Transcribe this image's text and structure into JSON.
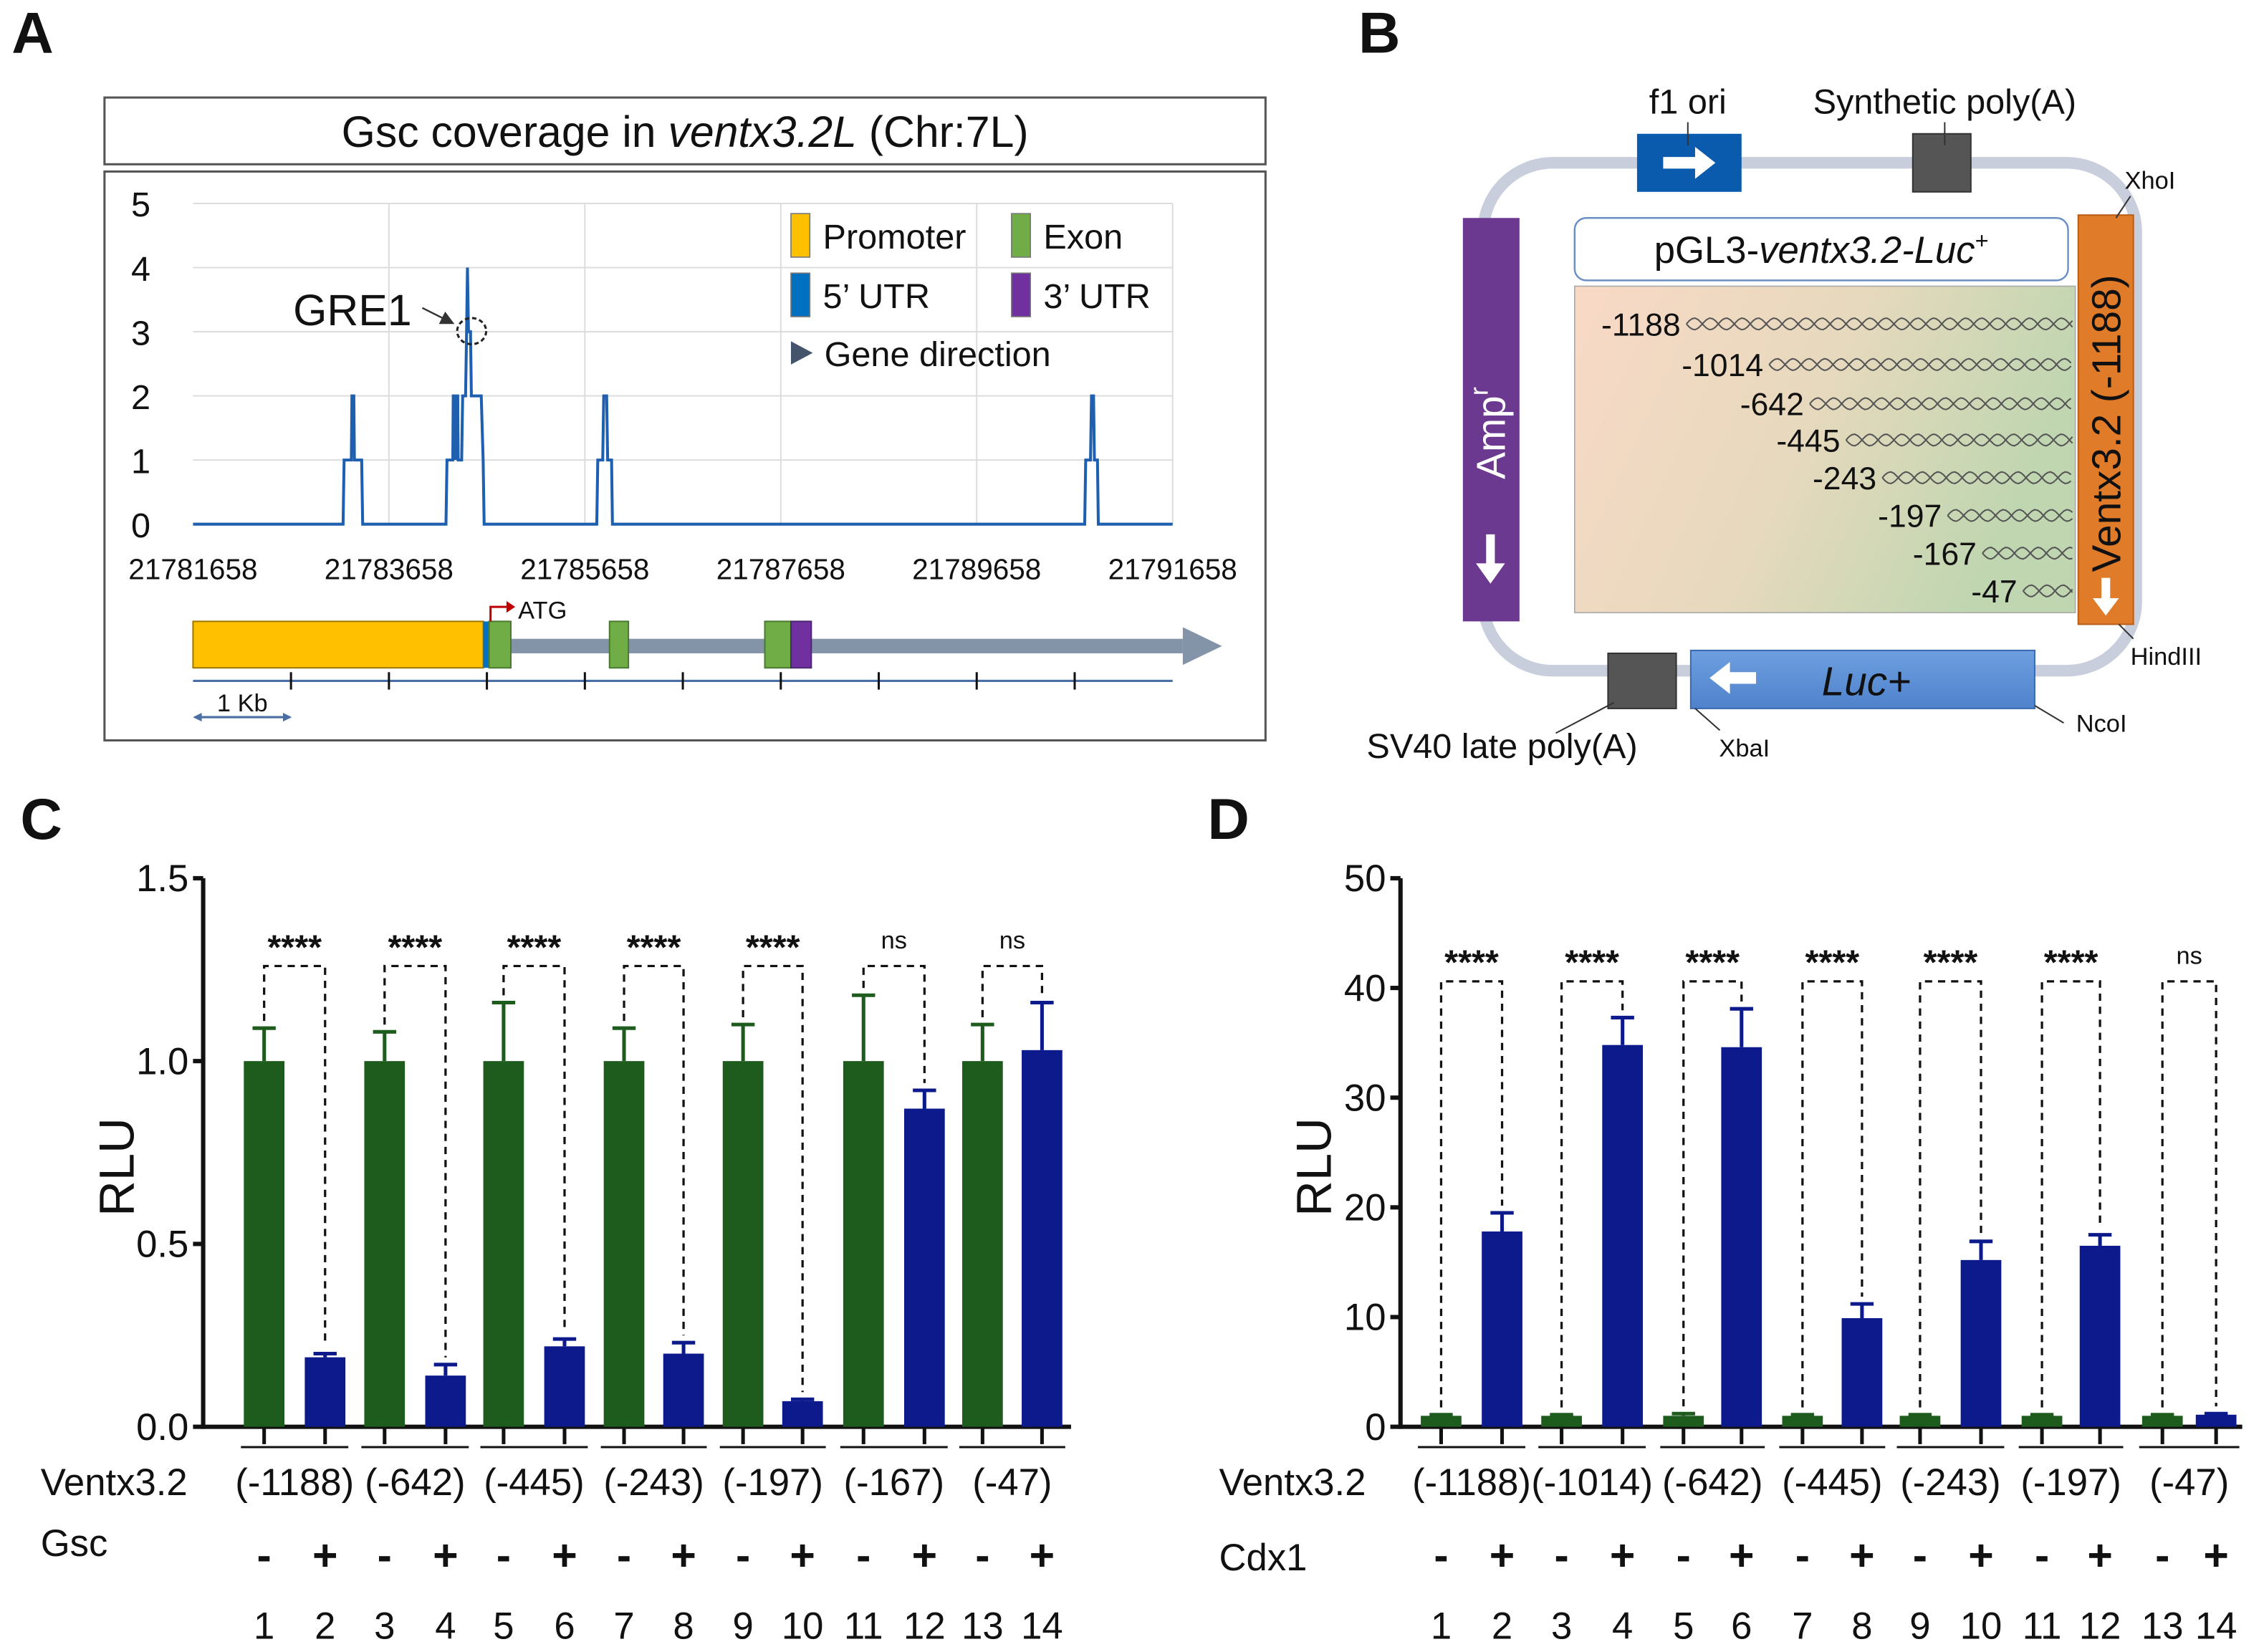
{
  "panel_labels": {
    "a": "A",
    "b": "B",
    "c": "C",
    "d": "D"
  },
  "panel_a": {
    "title_pre": "Gsc coverage in ",
    "title_italic": "ventx3.2L",
    "title_post": " (Chr:7L)",
    "annotation": "GRE1",
    "legend": [
      {
        "label": "Promoter",
        "color": "#FFC000"
      },
      {
        "label": "Exon",
        "color": "#70AD47"
      },
      {
        "label": "5’ UTR",
        "color": "#0070C0"
      },
      {
        "label": "3’ UTR",
        "color": "#7030A0"
      },
      {
        "label": "Gene direction",
        "color": "#44546A"
      }
    ],
    "atg_label": "ATG",
    "scale_label": "1 Kb"
  },
  "chart_data": [
    {
      "panel": "A",
      "type": "line",
      "title": "Gsc coverage in ventx3.2L (Chr:7L)",
      "xlabel": "",
      "ylabel": "",
      "xlim": [
        21781658,
        21791658
      ],
      "ylim": [
        0,
        5
      ],
      "x_ticks": [
        "21781658",
        "21783658",
        "21785658",
        "21787658",
        "21789658",
        "21791658"
      ],
      "y_ticks": [
        "0",
        "1",
        "2",
        "3",
        "4",
        "5"
      ],
      "grid": true,
      "legend_placement": "top-right",
      "color": "#1F5FAF",
      "series": [
        {
          "points": [
            [
              21781658,
              0
            ],
            [
              21783190,
              0
            ],
            [
              21783200,
              1
            ],
            [
              21783275,
              1
            ],
            [
              21783280,
              2
            ],
            [
              21783300,
              2
            ],
            [
              21783305,
              1
            ],
            [
              21783380,
              1
            ],
            [
              21783390,
              0
            ],
            [
              21784240,
              0
            ],
            [
              21784250,
              1
            ],
            [
              21784310,
              1
            ],
            [
              21784315,
              2
            ],
            [
              21784330,
              2
            ],
            [
              21784335,
              1
            ],
            [
              21784345,
              2
            ],
            [
              21784360,
              2
            ],
            [
              21784365,
              1
            ],
            [
              21784400,
              1
            ],
            [
              21784410,
              2
            ],
            [
              21784440,
              2
            ],
            [
              21784450,
              3
            ],
            [
              21784460,
              4
            ],
            [
              21784470,
              3
            ],
            [
              21784490,
              3
            ],
            [
              21784500,
              2
            ],
            [
              21784600,
              2
            ],
            [
              21784620,
              1
            ],
            [
              21784630,
              0
            ],
            [
              21785780,
              0
            ],
            [
              21785790,
              1
            ],
            [
              21785840,
              1
            ],
            [
              21785850,
              2
            ],
            [
              21785880,
              2
            ],
            [
              21785890,
              1
            ],
            [
              21785930,
              1
            ],
            [
              21785940,
              0
            ],
            [
              21790760,
              0
            ],
            [
              21790770,
              1
            ],
            [
              21790820,
              1
            ],
            [
              21790830,
              2
            ],
            [
              21790850,
              2
            ],
            [
              21790860,
              1
            ],
            [
              21790890,
              1
            ],
            [
              21790900,
              0
            ],
            [
              21791658,
              0
            ]
          ]
        }
      ]
    },
    {
      "panel": "C",
      "type": "bar",
      "ylabel": "RLU",
      "ylim": [
        0,
        1.5
      ],
      "y_ticks": [
        "0.0",
        "0.5",
        "1.0",
        "1.5"
      ],
      "row_label": "Ventx3.2",
      "factor_label": "Gsc",
      "groups": [
        "(-1188)",
        "(-642)",
        "(-445)",
        "(-243)",
        "(-197)",
        "(-167)",
        "(-47)"
      ],
      "significance": [
        "****",
        "****",
        "****",
        "****",
        "****",
        "ns",
        "ns"
      ],
      "lanes": [
        "1",
        "2",
        "3",
        "4",
        "5",
        "6",
        "7",
        "8",
        "9",
        "10",
        "11",
        "12",
        "13",
        "14"
      ],
      "signs": [
        "-",
        "+",
        "-",
        "+",
        "-",
        "+",
        "-",
        "+",
        "-",
        "+",
        "-",
        "+",
        "-",
        "+"
      ],
      "series": [
        {
          "color": "#1E5C1E",
          "values": [
            1.0,
            1.0,
            1.0,
            1.0,
            1.0,
            1.0,
            1.0
          ],
          "errors": [
            0.09,
            0.08,
            0.16,
            0.09,
            0.1,
            0.18,
            0.1
          ]
        },
        {
          "color": "#0C1A8C",
          "values": [
            0.19,
            0.14,
            0.22,
            0.2,
            0.07,
            0.87,
            1.03
          ],
          "errors": [
            0.01,
            0.03,
            0.02,
            0.03,
            0.005,
            0.05,
            0.13
          ]
        }
      ]
    },
    {
      "panel": "D",
      "type": "bar",
      "ylabel": "RLU",
      "ylim": [
        0,
        50
      ],
      "y_ticks": [
        "0",
        "10",
        "20",
        "30",
        "40",
        "50"
      ],
      "row_label": "Ventx3.2",
      "factor_label": "Cdx1",
      "groups": [
        "(-1188)",
        "(-1014)",
        "(-642)",
        "(-445)",
        "(-243)",
        "(-197)",
        "(-47)"
      ],
      "significance": [
        "****",
        "****",
        "****",
        "****",
        "****",
        "****",
        "ns"
      ],
      "lanes": [
        "1",
        "2",
        "3",
        "4",
        "5",
        "6",
        "7",
        "8",
        "9",
        "10",
        "11",
        "12",
        "13",
        "14"
      ],
      "signs": [
        "-",
        "+",
        "-",
        "+",
        "-",
        "+",
        "-",
        "+",
        "-",
        "+",
        "-",
        "+",
        "-",
        "+"
      ],
      "series": [
        {
          "color": "#1E5C1E",
          "values": [
            1,
            1,
            1,
            1,
            1,
            1,
            1
          ],
          "errors": [
            0.1,
            0.1,
            0.2,
            0.1,
            0.1,
            0.1,
            0.1
          ]
        },
        {
          "color": "#0C1A8C",
          "values": [
            17.8,
            34.8,
            34.6,
            9.9,
            15.2,
            16.5,
            1.1
          ],
          "errors": [
            1.7,
            2.5,
            3.5,
            1.3,
            1.7,
            1.0,
            0.1
          ]
        }
      ]
    }
  ],
  "panel_b": {
    "f1_ori": "f1 ori",
    "synthetic_polya": "Synthetic poly(A)",
    "xhoi": "XhoI",
    "hindiii": "HindIII",
    "ncoi": "NcoI",
    "xbai": "XbaI",
    "sv40": "SV40 late poly(A)",
    "amp": "Amp",
    "amp_sup": "r",
    "luc": "Luc+",
    "insert": "Ventx3.2 (-1188)",
    "construct_pre": "pGL3-",
    "construct_italic": "ventx3.2-Luc",
    "construct_sup": "+",
    "deletions": [
      "-1188",
      "-1014",
      "-642",
      "-445",
      "-243",
      "-197",
      "-167",
      "-47"
    ]
  }
}
